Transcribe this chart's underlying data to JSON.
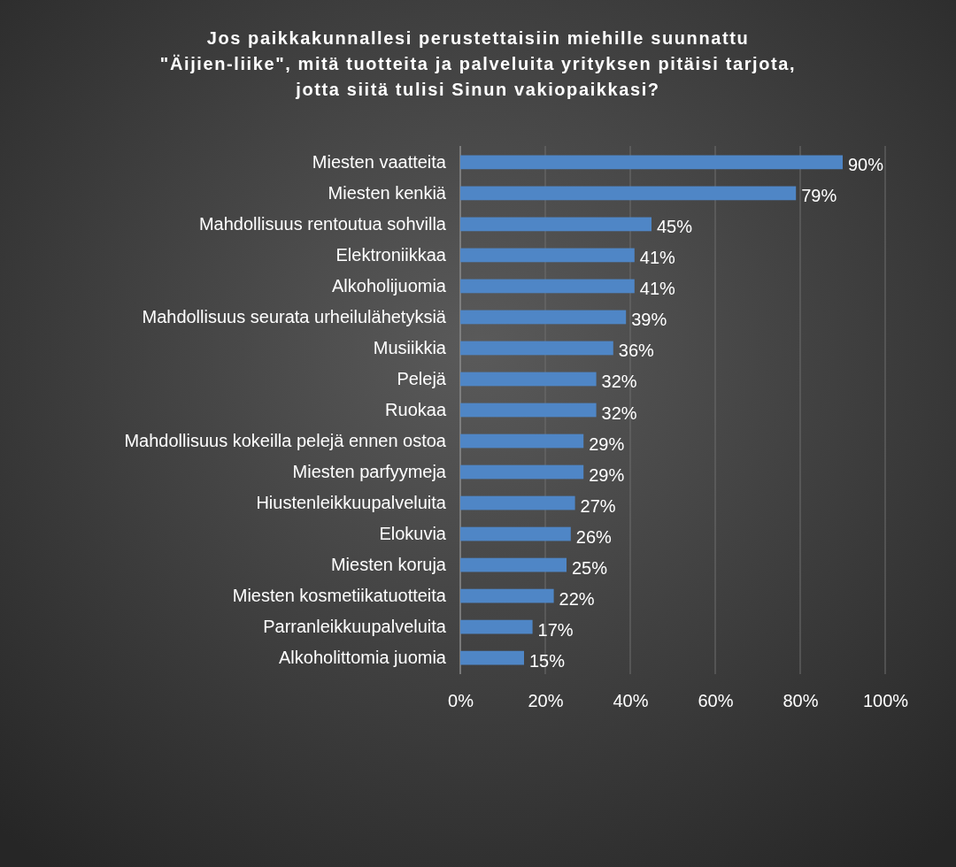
{
  "chart_data": {
    "type": "bar",
    "orientation": "horizontal",
    "title": "Jos paikkakunnallesi perustettaisiin miehille suunnattu \"Äijien-liike\", mitä tuotteita ja palveluita yrityksen pitäisi tarjota, jotta siitä tulisi Sinun vakiopaikkasi?",
    "categories": [
      "Miesten vaatteita",
      "Miesten kenkiä",
      "Mahdollisuus rentoutua sohvilla",
      "Elektroniikkaa",
      "Alkoholijuomia",
      "Mahdollisuus seurata urheilulähetyksiä",
      "Musiikkia",
      "Pelejä",
      "Ruokaa",
      "Mahdollisuus kokeilla pelejä ennen ostoa",
      "Miesten parfyymeja",
      "Hiustenleikkuupalveluita",
      "Elokuvia",
      "Miesten koruja",
      "Miesten kosmetiikatuotteita",
      "Parranleikkuupalveluita",
      "Alkoholittomia juomia"
    ],
    "values": [
      90,
      79,
      45,
      41,
      41,
      39,
      36,
      32,
      32,
      29,
      29,
      27,
      26,
      25,
      22,
      17,
      15
    ],
    "value_labels": [
      "90%",
      "79%",
      "45%",
      "41%",
      "41%",
      "39%",
      "36%",
      "32%",
      "32%",
      "29%",
      "29%",
      "27%",
      "26%",
      "25%",
      "22%",
      "17%",
      "15%"
    ],
    "color": "#4f86c6",
    "xlim": [
      0,
      100
    ],
    "xticks": [
      {
        "value": 0,
        "label": "0%"
      },
      {
        "value": 20,
        "label": "20%"
      },
      {
        "value": 40,
        "label": "40%"
      },
      {
        "value": 60,
        "label": "60%"
      },
      {
        "value": 80,
        "label": "80%"
      },
      {
        "value": 100,
        "label": "100%"
      }
    ],
    "grid": "x"
  }
}
